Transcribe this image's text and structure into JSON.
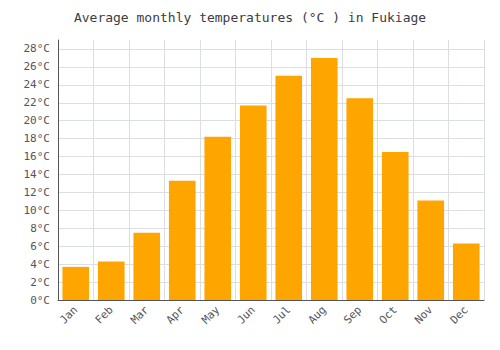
{
  "chart_data": {
    "type": "bar",
    "title": "Average monthly temperatures (°C ) in Fukiage",
    "categories": [
      "Jan",
      "Feb",
      "Mar",
      "Apr",
      "May",
      "Jun",
      "Jul",
      "Aug",
      "Sep",
      "Oct",
      "Nov",
      "Dec"
    ],
    "values": [
      3.7,
      4.3,
      7.5,
      13.3,
      18.2,
      21.7,
      25.0,
      27.0,
      22.5,
      16.5,
      11.1,
      6.3
    ],
    "color": "#FFA500",
    "ylim": [
      0,
      29
    ],
    "yticks": [
      {
        "value": 0,
        "label": "0°C"
      },
      {
        "value": 2,
        "label": "2°C"
      },
      {
        "value": 4,
        "label": "4°C"
      },
      {
        "value": 6,
        "label": "6°C"
      },
      {
        "value": 8,
        "label": "8°C"
      },
      {
        "value": 10,
        "label": "10°C"
      },
      {
        "value": 12,
        "label": "12°C"
      },
      {
        "value": 14,
        "label": "14°C"
      },
      {
        "value": 16,
        "label": "16°C"
      },
      {
        "value": 18,
        "label": "18°C"
      },
      {
        "value": 20,
        "label": "20°C"
      },
      {
        "value": 22,
        "label": "22°C"
      },
      {
        "value": 24,
        "label": "24°C"
      },
      {
        "value": 26,
        "label": "26°C"
      },
      {
        "value": 28,
        "label": "28°C"
      }
    ],
    "grid": true
  }
}
